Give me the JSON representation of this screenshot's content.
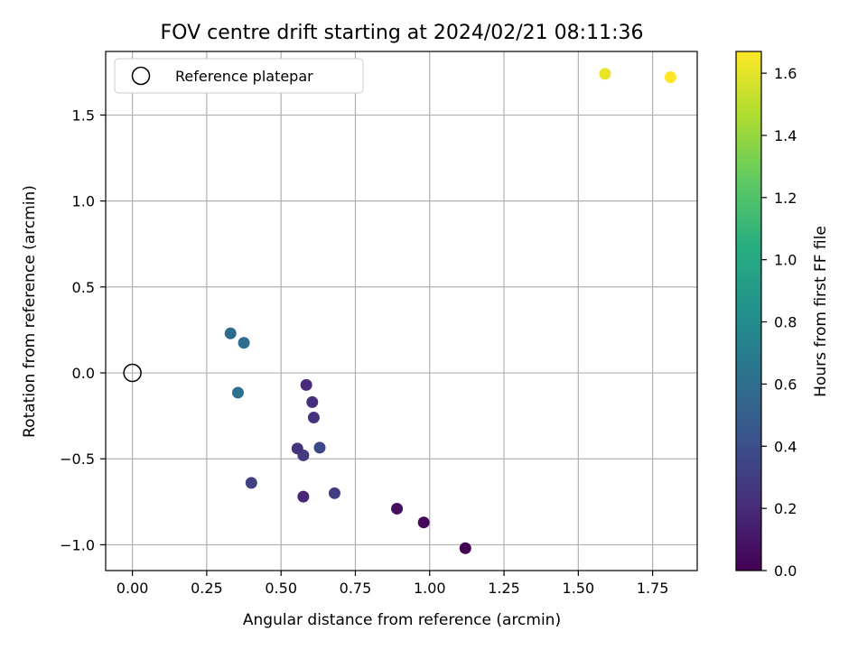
{
  "chart_data": {
    "type": "scatter",
    "title": "FOV centre drift starting at 2024/02/21 08:11:36",
    "xlabel": "Angular distance from reference (arcmin)",
    "ylabel": "Rotation from reference (arcmin)",
    "xlim": [
      -0.09,
      1.9
    ],
    "ylim": [
      -1.15,
      1.87
    ],
    "xticks": [
      "0.00",
      "0.25",
      "0.50",
      "0.75",
      "1.00",
      "1.25",
      "1.50",
      "1.75"
    ],
    "xtick_values": [
      0,
      0.25,
      0.5,
      0.75,
      1.0,
      1.25,
      1.5,
      1.75
    ],
    "yticks": [
      "1.5",
      "1.0",
      "0.5",
      "0.0",
      "−0.5",
      "−1.0"
    ],
    "ytick_values": [
      1.5,
      1.0,
      0.5,
      0.0,
      -0.5,
      -1.0
    ],
    "grid": true,
    "legend": {
      "label": "Reference platepar",
      "position": "top-left"
    },
    "reference_point": {
      "x": 0.0,
      "y": 0.0
    },
    "colorbar": {
      "label": "Hours from first FF file",
      "colormap": "viridis",
      "range": [
        0.0,
        1.67
      ],
      "ticks": [
        "0.0",
        "0.2",
        "0.4",
        "0.6",
        "0.8",
        "1.0",
        "1.2",
        "1.4",
        "1.6"
      ],
      "tick_values": [
        0.0,
        0.2,
        0.4,
        0.6,
        0.8,
        1.0,
        1.2,
        1.4,
        1.6
      ]
    },
    "points": [
      {
        "x": 1.12,
        "y": -1.02,
        "hours": 0.0
      },
      {
        "x": 0.98,
        "y": -0.87,
        "hours": 0.03
      },
      {
        "x": 0.89,
        "y": -0.79,
        "hours": 0.06
      },
      {
        "x": 0.575,
        "y": -0.72,
        "hours": 0.18
      },
      {
        "x": 0.68,
        "y": -0.7,
        "hours": 0.3
      },
      {
        "x": 0.4,
        "y": -0.64,
        "hours": 0.32
      },
      {
        "x": 0.575,
        "y": -0.48,
        "hours": 0.28
      },
      {
        "x": 0.555,
        "y": -0.44,
        "hours": 0.24
      },
      {
        "x": 0.63,
        "y": -0.435,
        "hours": 0.36
      },
      {
        "x": 0.61,
        "y": -0.26,
        "hours": 0.24
      },
      {
        "x": 0.605,
        "y": -0.17,
        "hours": 0.22
      },
      {
        "x": 0.585,
        "y": -0.07,
        "hours": 0.2
      },
      {
        "x": 0.355,
        "y": -0.115,
        "hours": 0.62
      },
      {
        "x": 0.375,
        "y": 0.175,
        "hours": 0.6
      },
      {
        "x": 0.33,
        "y": 0.23,
        "hours": 0.58
      },
      {
        "x": 1.59,
        "y": 1.74,
        "hours": 1.62
      },
      {
        "x": 1.81,
        "y": 1.72,
        "hours": 1.67
      }
    ]
  }
}
